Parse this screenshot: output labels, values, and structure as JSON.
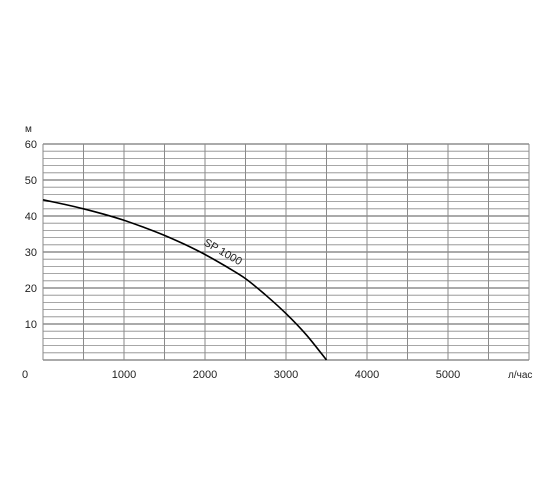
{
  "chart_data": {
    "type": "line",
    "title": "",
    "xlabel": "л/час",
    "ylabel": "м",
    "xlim": [
      0,
      5000
    ],
    "ylim": [
      0,
      60
    ],
    "x_ticks": [
      "0",
      "1000",
      "2000",
      "3000",
      "4000",
      "5000"
    ],
    "x_tick_values": [
      0,
      1000,
      2000,
      3000,
      4000,
      5000
    ],
    "y_ticks": [
      "10",
      "20",
      "30",
      "40",
      "50",
      "60"
    ],
    "y_tick_values": [
      10,
      20,
      30,
      40,
      50,
      60
    ],
    "grid": true,
    "series": [
      {
        "name": "SP 1000",
        "color": "#000000",
        "x": [
          0,
          250,
          500,
          750,
          1000,
          1250,
          1500,
          1750,
          2000,
          2250,
          2500,
          2750,
          3000,
          3250,
          3500
        ],
        "y": [
          44.5,
          43.3,
          42.0,
          40.5,
          38.8,
          36.8,
          34.6,
          32.1,
          29.3,
          26.1,
          22.6,
          18.0,
          12.9,
          7.0,
          0.0
        ]
      }
    ]
  }
}
